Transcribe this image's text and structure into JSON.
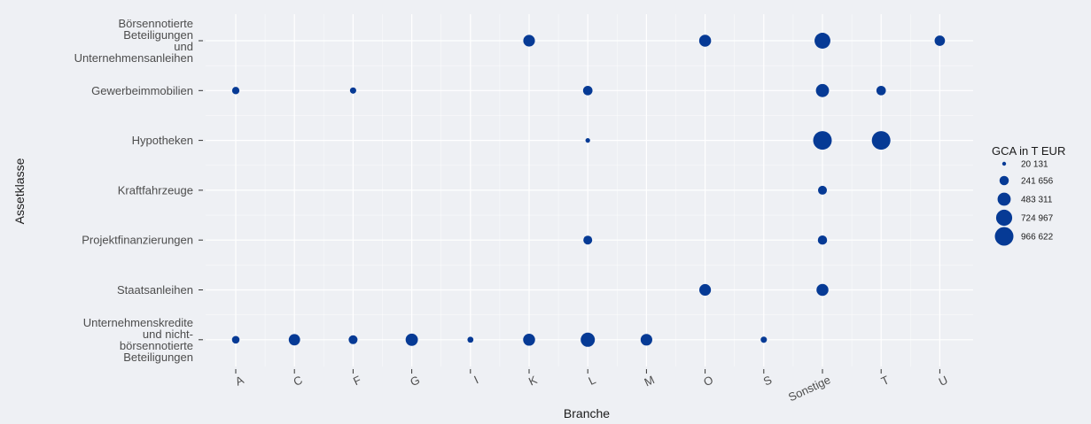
{
  "chart_data": {
    "type": "scatter",
    "xlabel": "Branche",
    "ylabel": "Assetklasse",
    "categories_x": [
      "A",
      "C",
      "F",
      "G",
      "I",
      "K",
      "L",
      "M",
      "O",
      "S",
      "Sonstige",
      "T",
      "U"
    ],
    "categories_y": [
      [
        "Börsennotierte",
        "Beteiligungen",
        "und",
        "Unternehmensanleihen"
      ],
      [
        "Gewerbeimmobilien"
      ],
      [
        "Hypotheken"
      ],
      [
        "Kraftfahrzeuge"
      ],
      [
        "Projektfinanzierungen"
      ],
      [
        "Staatsanleihen"
      ],
      [
        "Unternehmenskredite",
        "und nicht-",
        "börsennotierte",
        "Beteiligungen"
      ]
    ],
    "points": [
      {
        "x": "K",
        "y": 0,
        "value": 380000
      },
      {
        "x": "O",
        "y": 0,
        "value": 400000
      },
      {
        "x": "Sonstige",
        "y": 0,
        "value": 700000
      },
      {
        "x": "U",
        "y": 0,
        "value": 300000
      },
      {
        "x": "A",
        "y": 1,
        "value": 150000
      },
      {
        "x": "F",
        "y": 1,
        "value": 110000
      },
      {
        "x": "L",
        "y": 1,
        "value": 250000
      },
      {
        "x": "Sonstige",
        "y": 1,
        "value": 480000
      },
      {
        "x": "T",
        "y": 1,
        "value": 250000
      },
      {
        "x": "L",
        "y": 2,
        "value": 60000
      },
      {
        "x": "Sonstige",
        "y": 2,
        "value": 966622
      },
      {
        "x": "T",
        "y": 2,
        "value": 966622
      },
      {
        "x": "Sonstige",
        "y": 3,
        "value": 220000
      },
      {
        "x": "L",
        "y": 4,
        "value": 220000
      },
      {
        "x": "Sonstige",
        "y": 4,
        "value": 240000
      },
      {
        "x": "O",
        "y": 5,
        "value": 380000
      },
      {
        "x": "Sonstige",
        "y": 5,
        "value": 400000
      },
      {
        "x": "A",
        "y": 6,
        "value": 160000
      },
      {
        "x": "C",
        "y": 6,
        "value": 360000
      },
      {
        "x": "F",
        "y": 6,
        "value": 220000
      },
      {
        "x": "G",
        "y": 6,
        "value": 420000
      },
      {
        "x": "I",
        "y": 6,
        "value": 100000
      },
      {
        "x": "K",
        "y": 6,
        "value": 400000
      },
      {
        "x": "L",
        "y": 6,
        "value": 560000
      },
      {
        "x": "M",
        "y": 6,
        "value": 380000
      },
      {
        "x": "S",
        "y": 6,
        "value": 110000
      }
    ],
    "legend": {
      "title": "GCA in T EUR",
      "position": "right",
      "entries": [
        {
          "label": "20 131",
          "value": 20131
        },
        {
          "label": "241 656",
          "value": 241656
        },
        {
          "label": "483 311",
          "value": 483311
        },
        {
          "label": "724 967",
          "value": 724967
        },
        {
          "label": "966 622",
          "value": 966622
        }
      ]
    },
    "grid": true,
    "colors": {
      "point": "#063a95",
      "panel": "#eef0f4",
      "grid": "#ffffff"
    }
  }
}
